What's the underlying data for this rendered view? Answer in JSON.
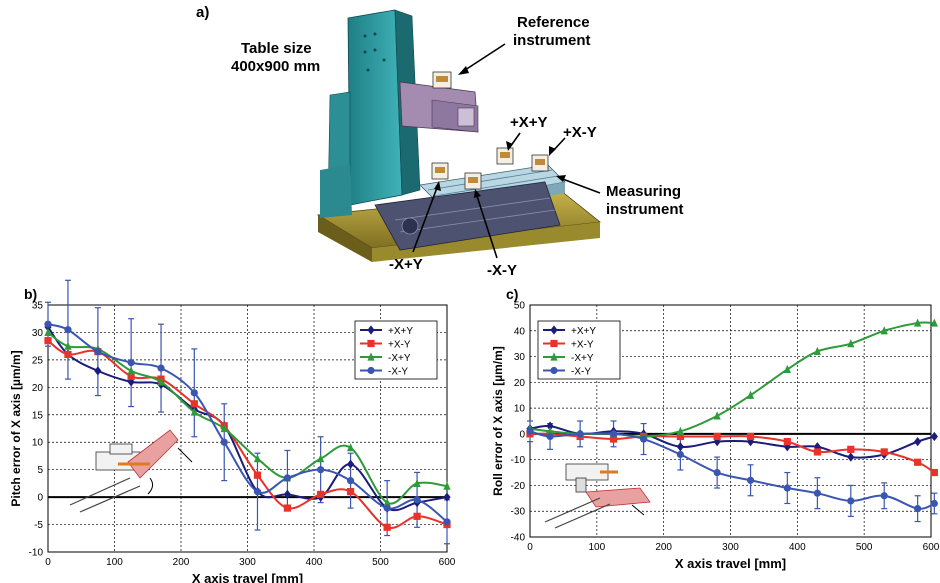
{
  "panel_a": {
    "label": "a)",
    "table_size_line1": "Table size",
    "table_size_line2": "400x900 mm",
    "reference_line1": "Reference",
    "reference_line2": "instrument",
    "measuring_line1": "Measuring",
    "measuring_line2": "instrument",
    "pos_pxpy": "+X+Y",
    "pos_pxmy": "+X-Y",
    "pos_mxpy": "-X+Y",
    "pos_mxmy": "-X-Y"
  },
  "colors": {
    "+X+Y": "#1c1c7a",
    "+X-Y": "#e8322a",
    "-X+Y": "#2e9a3a",
    "-X-Y": "#3a56b0",
    "errorbar": "#3a56b0"
  },
  "chart_data": [
    {
      "panel_label": "b)",
      "type": "line",
      "xlabel": "X axis travel [mm]",
      "ylabel": "Pitch error of X axis [µm/m]",
      "xlim": [
        0,
        600
      ],
      "ylim": [
        -10,
        35
      ],
      "xticks": [
        0,
        100,
        200,
        300,
        400,
        500,
        600
      ],
      "yticks": [
        -10,
        -5,
        0,
        5,
        10,
        15,
        20,
        25,
        30,
        35
      ],
      "grid": true,
      "legend": "top-right",
      "markers_x": [
        0,
        30,
        75,
        125,
        170,
        220,
        265,
        315,
        360,
        410,
        455,
        510,
        555,
        600
      ],
      "series": [
        {
          "name": "+X+Y",
          "marker": "diamond",
          "values": [
            31,
            26,
            23,
            21,
            20.5,
            16,
            13,
            1,
            0.5,
            0,
            6,
            -2,
            -1,
            0
          ]
        },
        {
          "name": "+X-Y",
          "marker": "square",
          "values": [
            28.5,
            26,
            26.5,
            22,
            21.5,
            17,
            13,
            4,
            -2,
            0.5,
            1,
            -5.5,
            -3.5,
            -5
          ]
        },
        {
          "name": "-X+Y",
          "marker": "triangle",
          "values": [
            30,
            27.5,
            27,
            23,
            21,
            15.5,
            12.5,
            7,
            3.5,
            7,
            9,
            -1,
            2.5,
            2
          ]
        },
        {
          "name": "-X-Y",
          "marker": "circle",
          "values": [
            31.5,
            30.5,
            26.5,
            24.5,
            23.5,
            19,
            10,
            1,
            3.5,
            5,
            3,
            -2,
            -0.5,
            -4.5
          ]
        }
      ],
      "error_bar_halfwidth": [
        4,
        9,
        8,
        8,
        8,
        8,
        7,
        7,
        5,
        6,
        5,
        5,
        5,
        4
      ]
    },
    {
      "panel_label": "c)",
      "type": "line",
      "xlabel": "X axis travel [mm]",
      "ylabel": "Roll error of X axis [µm/m]",
      "xlim": [
        0,
        600
      ],
      "ylim": [
        -40,
        50
      ],
      "xticks": [
        0,
        100,
        200,
        300,
        400,
        500,
        600
      ],
      "yticks": [
        -40,
        -30,
        -20,
        -10,
        0,
        10,
        20,
        30,
        40,
        50
      ],
      "grid": true,
      "legend": "top-left",
      "markers_x": [
        0,
        30,
        75,
        125,
        170,
        225,
        280,
        330,
        385,
        430,
        480,
        530,
        580,
        605
      ],
      "series": [
        {
          "name": "+X+Y",
          "marker": "diamond",
          "values": [
            2,
            3,
            0,
            1,
            0,
            -5,
            -3,
            -3,
            -5,
            -5,
            -9,
            -8,
            -3,
            -1
          ]
        },
        {
          "name": "+X-Y",
          "marker": "square",
          "values": [
            0,
            0,
            -1,
            -2,
            -1,
            -1,
            -1,
            -1,
            -3,
            -7,
            -6,
            -7,
            -11,
            -15
          ]
        },
        {
          "name": "-X+Y",
          "marker": "triangle",
          "values": [
            2,
            1,
            0,
            0,
            -1,
            1,
            7,
            15,
            25,
            32,
            35,
            40,
            43,
            43
          ]
        },
        {
          "name": "-X-Y",
          "marker": "circle",
          "values": [
            1,
            -1,
            0,
            0,
            -2,
            -8,
            -15,
            -18,
            -21,
            -23,
            -26,
            -24,
            -29,
            -27
          ]
        }
      ],
      "error_bar_halfwidth": [
        4,
        5,
        5,
        5,
        6,
        6,
        6,
        6,
        6,
        6,
        6,
        5,
        5,
        4
      ]
    }
  ]
}
